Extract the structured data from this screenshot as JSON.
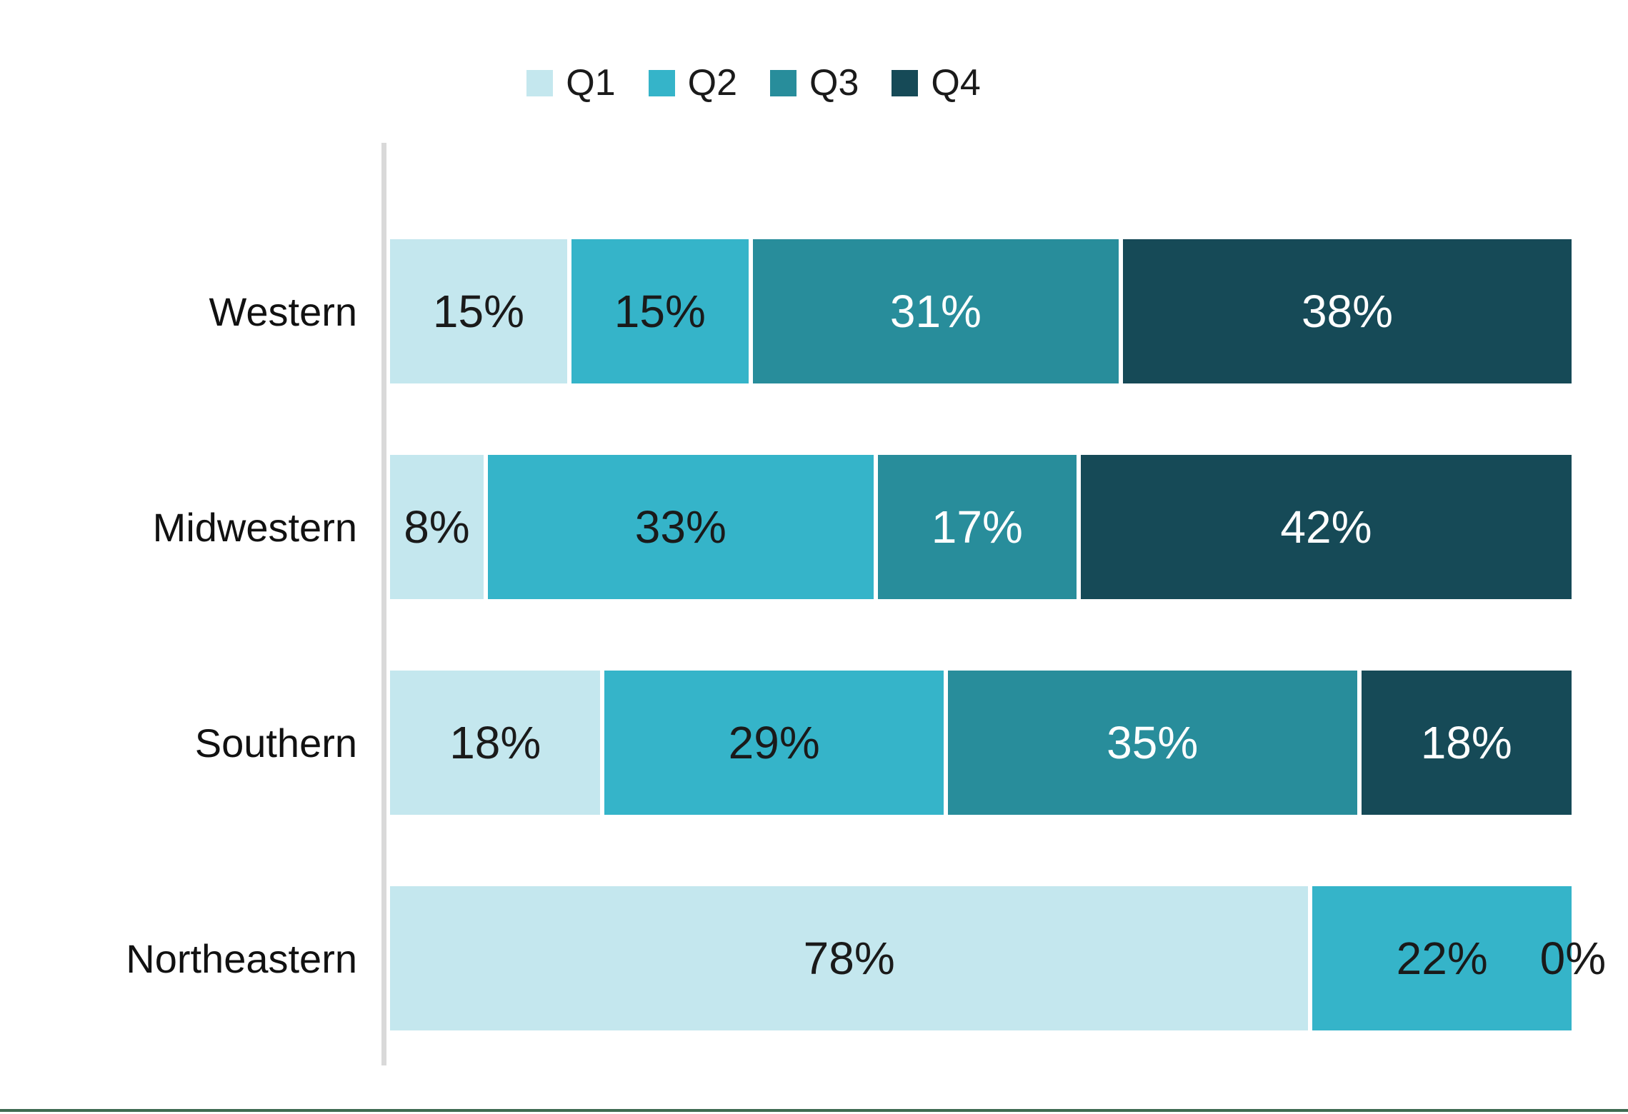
{
  "page": {
    "background": "#ffffff",
    "bottom_rule_color": "#3f6b52"
  },
  "chart_data": {
    "type": "bar",
    "orientation": "horizontal",
    "stacked": true,
    "value_format": "percent",
    "xlim": [
      0,
      100
    ],
    "legend_position": "top",
    "axis_line_color": "#d9d9d9",
    "grid": false,
    "zero_label_color": "#1a1a1a",
    "categories": [
      "Western",
      "Midwestern",
      "Southern",
      "Northeastern"
    ],
    "series": [
      {
        "name": "Q1",
        "color": "#c4e7ee",
        "label_color": "#1a1a1a",
        "values": [
          15,
          8,
          18,
          78
        ],
        "labels": [
          "15%",
          "8%",
          "18%",
          "78%"
        ]
      },
      {
        "name": "Q2",
        "color": "#35b4c9",
        "label_color": "#1a1a1a",
        "values": [
          15,
          33,
          29,
          22
        ],
        "labels": [
          "15%",
          "33%",
          "29%",
          "22%"
        ]
      },
      {
        "name": "Q3",
        "color": "#288d9b",
        "label_color": "#ffffff",
        "values": [
          31,
          17,
          35,
          0
        ],
        "labels": [
          "31%",
          "17%",
          "35%",
          "0%"
        ]
      },
      {
        "name": "Q4",
        "color": "#164a57",
        "label_color": "#ffffff",
        "values": [
          38,
          42,
          18,
          0
        ],
        "labels": [
          "38%",
          "42%",
          "18%",
          "0%"
        ]
      }
    ]
  }
}
